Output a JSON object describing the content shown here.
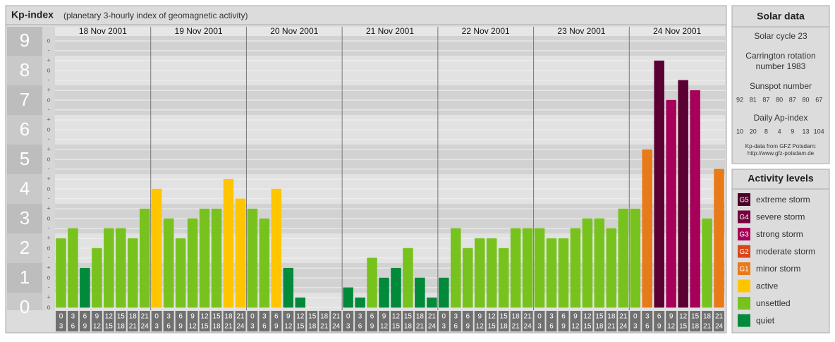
{
  "chart_data": {
    "type": "bar",
    "title": "Kp-index",
    "subtitle": "(planetary 3-hourly index of geomagnetic activity)",
    "groups": [
      "18 Nov 2001",
      "19 Nov 2001",
      "20 Nov 2001",
      "21 Nov 2001",
      "22 Nov 2001",
      "23 Nov 2001",
      "24 Nov 2001"
    ],
    "categories": [
      [
        "0",
        "3"
      ],
      [
        "3",
        "6"
      ],
      [
        "6",
        "9"
      ],
      [
        "9",
        "12"
      ],
      [
        "12",
        "15"
      ],
      [
        "15",
        "18"
      ],
      [
        "18",
        "21"
      ],
      [
        "21",
        "24"
      ],
      [
        "0",
        "3"
      ],
      [
        "3",
        "6"
      ],
      [
        "6",
        "9"
      ],
      [
        "9",
        "12"
      ],
      [
        "12",
        "15"
      ],
      [
        "15",
        "18"
      ],
      [
        "18",
        "21"
      ],
      [
        "21",
        "24"
      ],
      [
        "0",
        "3"
      ],
      [
        "3",
        "6"
      ],
      [
        "6",
        "9"
      ],
      [
        "9",
        "12"
      ],
      [
        "12",
        "15"
      ],
      [
        "15",
        "18"
      ],
      [
        "18",
        "21"
      ],
      [
        "21",
        "24"
      ],
      [
        "0",
        "3"
      ],
      [
        "3",
        "6"
      ],
      [
        "6",
        "9"
      ],
      [
        "9",
        "12"
      ],
      [
        "12",
        "15"
      ],
      [
        "15",
        "18"
      ],
      [
        "18",
        "21"
      ],
      [
        "21",
        "24"
      ],
      [
        "0",
        "3"
      ],
      [
        "3",
        "6"
      ],
      [
        "6",
        "9"
      ],
      [
        "9",
        "12"
      ],
      [
        "12",
        "15"
      ],
      [
        "15",
        "18"
      ],
      [
        "18",
        "21"
      ],
      [
        "21",
        "24"
      ],
      [
        "0",
        "3"
      ],
      [
        "3",
        "6"
      ],
      [
        "6",
        "9"
      ],
      [
        "9",
        "12"
      ],
      [
        "12",
        "15"
      ],
      [
        "15",
        "18"
      ],
      [
        "18",
        "21"
      ],
      [
        "21",
        "24"
      ],
      [
        "0",
        "3"
      ],
      [
        "3",
        "6"
      ],
      [
        "6",
        "9"
      ],
      [
        "9",
        "12"
      ],
      [
        "12",
        "15"
      ],
      [
        "15",
        "18"
      ],
      [
        "18",
        "21"
      ],
      [
        "21",
        "24"
      ]
    ],
    "values": [
      2.33,
      2.67,
      1.33,
      2,
      2.67,
      2.67,
      2.33,
      3.33,
      4,
      3,
      2.33,
      3,
      3.33,
      3.33,
      4.33,
      3.67,
      3.33,
      3,
      4,
      1.33,
      0.33,
      0,
      0,
      0,
      0.67,
      0.33,
      1.67,
      1,
      1.33,
      2,
      1,
      0.33,
      1,
      2.67,
      2,
      2.33,
      2.33,
      2,
      2.67,
      2.67,
      2.67,
      2.33,
      2.33,
      2.67,
      3,
      3,
      2.67,
      3.33,
      3.33,
      5.33,
      8.33,
      7,
      7.67,
      7.33,
      3,
      4.67
    ],
    "colors": [
      "#78c21e",
      "#78c21e",
      "#008a3a",
      "#78c21e",
      "#78c21e",
      "#78c21e",
      "#78c21e",
      "#78c21e",
      "#ffc600",
      "#78c21e",
      "#78c21e",
      "#78c21e",
      "#78c21e",
      "#78c21e",
      "#ffc600",
      "#ffc600",
      "#78c21e",
      "#78c21e",
      "#ffc600",
      "#008a3a",
      "#008a3a",
      "#008a3a",
      "#008a3a",
      "#008a3a",
      "#008a3a",
      "#008a3a",
      "#78c21e",
      "#008a3a",
      "#008a3a",
      "#78c21e",
      "#008a3a",
      "#008a3a",
      "#008a3a",
      "#78c21e",
      "#78c21e",
      "#78c21e",
      "#78c21e",
      "#78c21e",
      "#78c21e",
      "#78c21e",
      "#78c21e",
      "#78c21e",
      "#78c21e",
      "#78c21e",
      "#78c21e",
      "#78c21e",
      "#78c21e",
      "#78c21e",
      "#78c21e",
      "#e87a1a",
      "#5a0032",
      "#a8005a",
      "#5a0032",
      "#a8005a",
      "#78c21e",
      "#e87a1a"
    ],
    "ylim": [
      0,
      9
    ],
    "yticks": [
      0,
      1,
      2,
      3,
      4,
      5,
      6,
      7,
      8,
      9
    ],
    "yticks_minor": [
      {
        "value": 0,
        "label": "o"
      },
      {
        "value": 0.33,
        "label": "+"
      },
      {
        "value": 0.67,
        "label": "-"
      },
      {
        "value": 1,
        "label": "o"
      },
      {
        "value": 1.33,
        "label": "+"
      },
      {
        "value": 1.67,
        "label": "-"
      },
      {
        "value": 2,
        "label": "o"
      },
      {
        "value": 2.33,
        "label": "+"
      },
      {
        "value": 2.67,
        "label": "-"
      },
      {
        "value": 3,
        "label": "o"
      },
      {
        "value": 3.33,
        "label": "+"
      },
      {
        "value": 3.67,
        "label": "-"
      },
      {
        "value": 4,
        "label": "o"
      },
      {
        "value": 4.33,
        "label": "+"
      },
      {
        "value": 4.67,
        "label": "-"
      },
      {
        "value": 5,
        "label": "o"
      },
      {
        "value": 5.33,
        "label": "+"
      },
      {
        "value": 5.67,
        "label": "-"
      },
      {
        "value": 6,
        "label": "o"
      },
      {
        "value": 6.33,
        "label": "+"
      },
      {
        "value": 6.67,
        "label": "-"
      },
      {
        "value": 7,
        "label": "o"
      },
      {
        "value": 7.33,
        "label": "+"
      },
      {
        "value": 7.67,
        "label": "-"
      },
      {
        "value": 8,
        "label": "o"
      },
      {
        "value": 8.33,
        "label": "+"
      },
      {
        "value": 8.67,
        "label": "-"
      },
      {
        "value": 9,
        "label": "o"
      }
    ],
    "grid": true,
    "legend": {
      "title": "Activity levels",
      "items": [
        {
          "badge": "G5",
          "label": "extreme storm",
          "color": "#4e0028"
        },
        {
          "badge": "G4",
          "label": "severe storm",
          "color": "#76003e"
        },
        {
          "badge": "G3",
          "label": "strong storm",
          "color": "#a8005a"
        },
        {
          "badge": "G2",
          "label": "moderate storm",
          "color": "#d9451a"
        },
        {
          "badge": "G1",
          "label": "minor storm",
          "color": "#e87a1a"
        },
        {
          "label": "active",
          "color": "#ffc600"
        },
        {
          "label": "unsettled",
          "color": "#78c21e"
        },
        {
          "label": "quiet",
          "color": "#008a3a"
        }
      ]
    }
  },
  "solar_data": {
    "title": "Solar data",
    "cycle": "Solar cycle 23",
    "carrington": [
      "Carrington rotation",
      "number 1983"
    ],
    "sunspot_title": "Sunspot number",
    "sunspot": [
      92,
      81,
      87,
      80,
      87,
      80,
      67
    ],
    "ap_title": "Daily Ap-index",
    "ap": [
      10,
      20,
      8,
      4,
      9,
      13,
      104
    ],
    "source": [
      "Kp-data from GFZ Potsdam:",
      "http://www.gfz-potsdam.de"
    ]
  }
}
